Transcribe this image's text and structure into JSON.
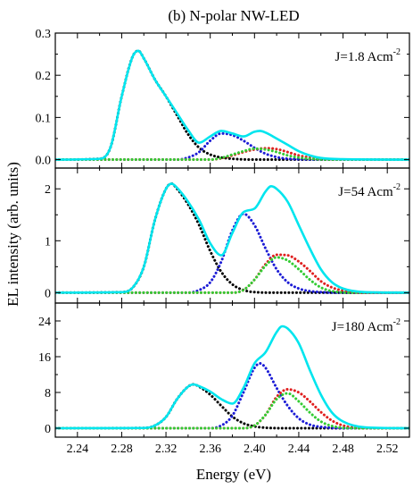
{
  "figure_title": "(b) N-polar NW-LED",
  "xlabel": "Energy (eV)",
  "ylabel": "EL intensity (arb. units)",
  "chart_data": [
    {
      "type": "line",
      "annotation": "J=1.8 Acm",
      "annotation_sup": "-2",
      "xlim": [
        2.22,
        2.54
      ],
      "ylim": [
        -0.02,
        0.3
      ],
      "x_ticks": [
        "2.24",
        "2.28",
        "2.32",
        "2.36",
        "2.40",
        "2.44",
        "2.48",
        "2.52"
      ],
      "y_ticks": [
        0.0,
        0.1,
        0.2,
        0.3
      ],
      "y_tick_labels": [
        "0.0",
        "0.1",
        "0.2",
        "0.3"
      ],
      "series": [
        {
          "style": "solid",
          "color": "#00e5ee",
          "x": [
            2.22,
            2.26,
            2.27,
            2.28,
            2.29,
            2.295,
            2.3,
            2.31,
            2.32,
            2.33,
            2.34,
            2.35,
            2.36,
            2.37,
            2.38,
            2.39,
            2.4,
            2.405,
            2.41,
            2.42,
            2.43,
            2.44,
            2.45,
            2.46,
            2.48,
            2.54
          ],
          "y": [
            0,
            0.002,
            0.03,
            0.15,
            0.245,
            0.258,
            0.24,
            0.19,
            0.15,
            0.11,
            0.07,
            0.04,
            0.055,
            0.068,
            0.062,
            0.055,
            0.066,
            0.068,
            0.064,
            0.05,
            0.035,
            0.02,
            0.01,
            0.004,
            0.001,
            0
          ]
        },
        {
          "style": "dotted",
          "color": "#000000",
          "x": [
            2.22,
            2.26,
            2.27,
            2.28,
            2.29,
            2.295,
            2.3,
            2.31,
            2.32,
            2.33,
            2.34,
            2.35,
            2.36,
            2.37,
            2.38,
            2.4,
            2.54
          ],
          "y": [
            0,
            0.002,
            0.03,
            0.15,
            0.245,
            0.258,
            0.24,
            0.19,
            0.15,
            0.105,
            0.06,
            0.028,
            0.012,
            0.005,
            0.002,
            0,
            0
          ]
        },
        {
          "style": "dotted",
          "color": "#1c1cd6",
          "x": [
            2.22,
            2.33,
            2.34,
            2.35,
            2.36,
            2.37,
            2.38,
            2.39,
            2.4,
            2.41,
            2.42,
            2.43,
            2.44,
            2.46,
            2.54
          ],
          "y": [
            0,
            0,
            0.005,
            0.018,
            0.045,
            0.062,
            0.058,
            0.045,
            0.028,
            0.014,
            0.006,
            0.002,
            0.001,
            0,
            0
          ]
        },
        {
          "style": "dotted",
          "color": "#e02020",
          "x": [
            2.22,
            2.36,
            2.37,
            2.38,
            2.39,
            2.4,
            2.41,
            2.42,
            2.43,
            2.44,
            2.45,
            2.46,
            2.48,
            2.54
          ],
          "y": [
            0,
            0,
            0.003,
            0.01,
            0.018,
            0.024,
            0.027,
            0.025,
            0.018,
            0.01,
            0.005,
            0.002,
            0,
            0
          ]
        },
        {
          "style": "dotted",
          "color": "#33cc33",
          "x": [
            2.22,
            2.36,
            2.37,
            2.38,
            2.39,
            2.4,
            2.41,
            2.42,
            2.43,
            2.44,
            2.45,
            2.47,
            2.54
          ],
          "y": [
            0,
            0,
            0.004,
            0.012,
            0.02,
            0.026,
            0.024,
            0.018,
            0.01,
            0.005,
            0.002,
            0,
            0
          ]
        }
      ]
    },
    {
      "type": "line",
      "annotation": "J=54 Acm",
      "annotation_sup": "-2",
      "xlim": [
        2.22,
        2.54
      ],
      "ylim": [
        -0.2,
        2.4
      ],
      "x_ticks": [
        "2.24",
        "2.28",
        "2.32",
        "2.36",
        "2.40",
        "2.44",
        "2.48",
        "2.52"
      ],
      "y_ticks": [
        0,
        1,
        2
      ],
      "y_tick_labels": [
        "0",
        "1",
        "2"
      ],
      "series": [
        {
          "style": "solid",
          "color": "#00e5ee",
          "x": [
            2.22,
            2.28,
            2.29,
            2.3,
            2.31,
            2.32,
            2.325,
            2.33,
            2.34,
            2.35,
            2.36,
            2.37,
            2.38,
            2.39,
            2.4,
            2.41,
            2.415,
            2.42,
            2.43,
            2.44,
            2.45,
            2.46,
            2.47,
            2.48,
            2.5,
            2.54
          ],
          "y": [
            0,
            0.01,
            0.1,
            0.5,
            1.4,
            2.0,
            2.1,
            2.02,
            1.75,
            1.4,
            0.95,
            0.72,
            1.15,
            1.55,
            1.62,
            1.95,
            2.05,
            2.0,
            1.75,
            1.3,
            0.85,
            0.45,
            0.2,
            0.08,
            0.01,
            0
          ]
        },
        {
          "style": "dotted",
          "color": "#000000",
          "x": [
            2.22,
            2.28,
            2.29,
            2.3,
            2.31,
            2.32,
            2.325,
            2.33,
            2.34,
            2.35,
            2.36,
            2.37,
            2.38,
            2.39,
            2.4,
            2.42,
            2.54
          ],
          "y": [
            0,
            0.01,
            0.1,
            0.5,
            1.4,
            2.0,
            2.1,
            2.0,
            1.7,
            1.3,
            0.8,
            0.4,
            0.16,
            0.05,
            0.01,
            0,
            0
          ]
        },
        {
          "style": "dotted",
          "color": "#1c1cd6",
          "x": [
            2.22,
            2.34,
            2.35,
            2.36,
            2.37,
            2.38,
            2.39,
            2.4,
            2.41,
            2.42,
            2.43,
            2.44,
            2.45,
            2.46,
            2.48,
            2.54
          ],
          "y": [
            0,
            0,
            0.05,
            0.2,
            0.6,
            1.2,
            1.52,
            1.3,
            0.85,
            0.45,
            0.2,
            0.08,
            0.03,
            0.01,
            0,
            0
          ]
        },
        {
          "style": "dotted",
          "color": "#e02020",
          "x": [
            2.22,
            2.38,
            2.39,
            2.4,
            2.41,
            2.42,
            2.43,
            2.44,
            2.45,
            2.46,
            2.47,
            2.48,
            2.5,
            2.54
          ],
          "y": [
            0,
            0,
            0.05,
            0.25,
            0.55,
            0.73,
            0.72,
            0.6,
            0.42,
            0.22,
            0.1,
            0.04,
            0,
            0
          ]
        },
        {
          "style": "dotted",
          "color": "#33cc33",
          "x": [
            2.22,
            2.38,
            2.39,
            2.4,
            2.41,
            2.42,
            2.43,
            2.44,
            2.45,
            2.46,
            2.47,
            2.49,
            2.54
          ],
          "y": [
            0,
            0,
            0.05,
            0.25,
            0.52,
            0.68,
            0.62,
            0.45,
            0.25,
            0.1,
            0.03,
            0,
            0
          ]
        }
      ]
    },
    {
      "type": "line",
      "annotation": "J=180 Acm",
      "annotation_sup": "-2",
      "xlim": [
        2.22,
        2.54
      ],
      "ylim": [
        -2,
        28
      ],
      "x_ticks": [
        "2.24",
        "2.28",
        "2.32",
        "2.36",
        "2.40",
        "2.44",
        "2.48",
        "2.52"
      ],
      "y_ticks": [
        0,
        8,
        16,
        24
      ],
      "y_tick_labels": [
        "0",
        "8",
        "16",
        "24"
      ],
      "series": [
        {
          "style": "solid",
          "color": "#00e5ee",
          "x": [
            2.22,
            2.3,
            2.31,
            2.32,
            2.33,
            2.34,
            2.345,
            2.35,
            2.36,
            2.37,
            2.38,
            2.39,
            2.4,
            2.41,
            2.42,
            2.425,
            2.43,
            2.44,
            2.45,
            2.46,
            2.47,
            2.48,
            2.5,
            2.54
          ],
          "y": [
            0,
            0.05,
            0.6,
            2.5,
            6.5,
            9.3,
            9.8,
            9.4,
            8.2,
            6.5,
            5.5,
            9,
            14.5,
            17,
            21.5,
            22.8,
            22.3,
            19,
            13,
            7.5,
            3.5,
            1.5,
            0.2,
            0
          ]
        },
        {
          "style": "dotted",
          "color": "#000000",
          "x": [
            2.22,
            2.3,
            2.31,
            2.32,
            2.33,
            2.34,
            2.345,
            2.35,
            2.36,
            2.37,
            2.38,
            2.39,
            2.4,
            2.41,
            2.43,
            2.54
          ],
          "y": [
            0,
            0.05,
            0.6,
            2.5,
            6.5,
            9.3,
            9.8,
            9.3,
            7.5,
            5,
            2.6,
            1.1,
            0.4,
            0.1,
            0,
            0
          ]
        },
        {
          "style": "dotted",
          "color": "#1c1cd6",
          "x": [
            2.22,
            2.36,
            2.37,
            2.38,
            2.39,
            2.4,
            2.405,
            2.41,
            2.42,
            2.43,
            2.44,
            2.45,
            2.46,
            2.48,
            2.54
          ],
          "y": [
            0,
            0,
            0.6,
            2.8,
            8,
            13.5,
            14.5,
            13.5,
            9,
            5,
            2.2,
            0.8,
            0.3,
            0,
            0
          ]
        },
        {
          "style": "dotted",
          "color": "#e02020",
          "x": [
            2.22,
            2.39,
            2.4,
            2.41,
            2.42,
            2.43,
            2.44,
            2.45,
            2.46,
            2.47,
            2.48,
            2.5,
            2.54
          ],
          "y": [
            0,
            0,
            0.6,
            3,
            7,
            8.7,
            8,
            6,
            3.6,
            1.7,
            0.6,
            0,
            0
          ]
        },
        {
          "style": "dotted",
          "color": "#33cc33",
          "x": [
            2.22,
            2.39,
            2.4,
            2.41,
            2.42,
            2.43,
            2.44,
            2.45,
            2.46,
            2.47,
            2.49,
            2.54
          ],
          "y": [
            0,
            0,
            0.6,
            3,
            6.5,
            7.8,
            6,
            3.5,
            1.5,
            0.5,
            0,
            0
          ]
        }
      ]
    }
  ]
}
